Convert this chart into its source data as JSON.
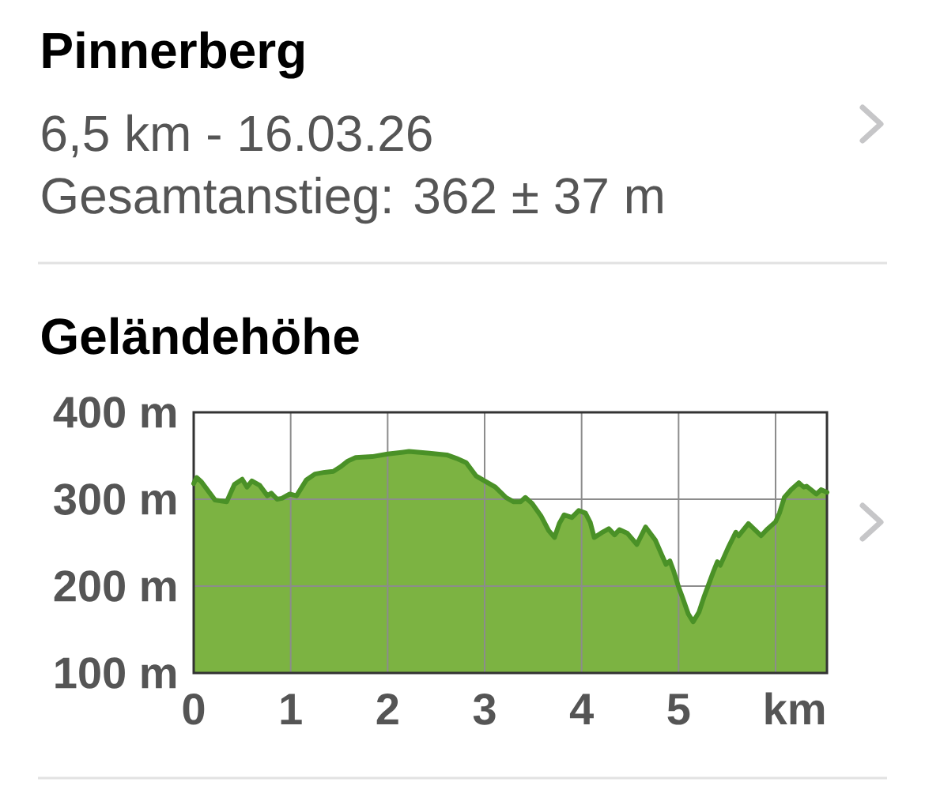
{
  "chart_data": {
    "type": "area",
    "title": "Pinnerberg",
    "subtitle": "6,5 km - 16.03.26",
    "annotations": [
      "Gesamtanstieg: 362 ± 37 m",
      "Geländehöhe"
    ],
    "xlabel": "km",
    "x": [
      0,
      0.03,
      0.08,
      0.22,
      0.34,
      0.42,
      0.5,
      0.55,
      0.6,
      0.68,
      0.76,
      0.8,
      0.86,
      0.91,
      0.99,
      1.06,
      1.16,
      1.25,
      1.35,
      1.44,
      1.51,
      1.59,
      1.67,
      1.84,
      2.0,
      2.22,
      2.43,
      2.61,
      2.71,
      2.81,
      2.91,
      3.0,
      3.11,
      3.22,
      3.3,
      3.37,
      3.42,
      3.49,
      3.58,
      3.66,
      3.72,
      3.77,
      3.82,
      3.9,
      3.97,
      4.04,
      4.09,
      4.13,
      4.2,
      4.28,
      4.34,
      4.39,
      4.47,
      4.57,
      4.66,
      4.76,
      4.83,
      4.87,
      4.91,
      4.95,
      5.0,
      5.04,
      5.1,
      5.15,
      5.21,
      5.26,
      5.3,
      5.36,
      5.4,
      5.43,
      5.51,
      5.59,
      5.62,
      5.72,
      5.85,
      5.91,
      6.0,
      6.04,
      6.09,
      6.16,
      6.24,
      6.29,
      6.32,
      6.42,
      6.47,
      6.53
    ],
    "series": [
      {
        "color": "#7cb342",
        "values": [
          318,
          325,
          320,
          299,
          297,
          317,
          323,
          314,
          321,
          316,
          304,
          307,
          300,
          301,
          306,
          304,
          322,
          329,
          331,
          332,
          337,
          344,
          348,
          349,
          352,
          355,
          353,
          351,
          347,
          342,
          327,
          321,
          314,
          302,
          297,
          297,
          302,
          295,
          281,
          264,
          256,
          272,
          282,
          279,
          287,
          284,
          273,
          256,
          261,
          266,
          259,
          265,
          261,
          248,
          268,
          253,
          235,
          225,
          229,
          217,
          199,
          187,
          168,
          159,
          170,
          187,
          199,
          217,
          228,
          224,
          244,
          262,
          258,
          272,
          258,
          265,
          274,
          284,
          302,
          311,
          319,
          314,
          315,
          306,
          311,
          308
        ]
      }
    ],
    "xlim": [
      0,
      6.53
    ],
    "ylim": [
      100,
      400
    ],
    "xticks": [
      0,
      1,
      2,
      3,
      4,
      5,
      {
        "value": 6,
        "label": null
      }
    ],
    "yticks": [
      {
        "value": 100,
        "label": "100 m"
      },
      {
        "value": 200,
        "label": "200 m"
      },
      {
        "value": 300,
        "label": "300 m"
      },
      {
        "value": 400,
        "label": "400 m"
      }
    ],
    "grid": true
  }
}
